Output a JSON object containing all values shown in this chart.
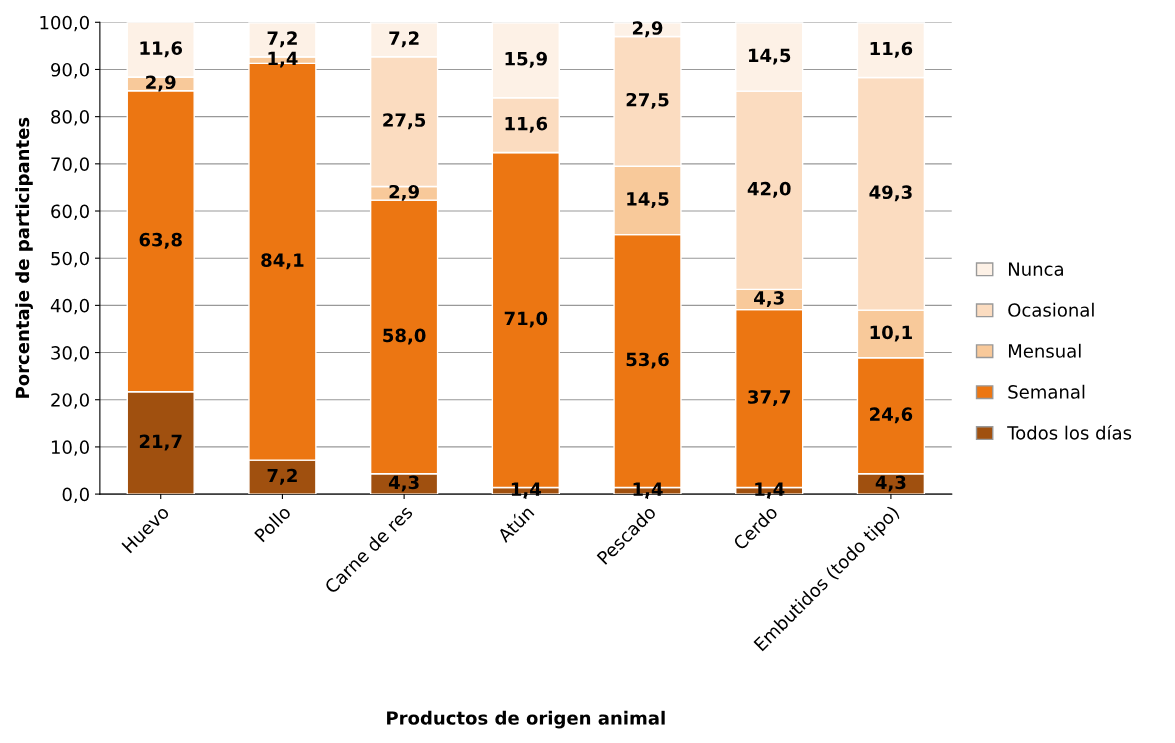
{
  "chart_data": {
    "type": "bar",
    "stacked": true,
    "xlabel": "Productos de origen animal",
    "ylabel": "Porcentaje de participantes",
    "categories": [
      "Huevo",
      "Pollo",
      "Carne de res",
      "Atún",
      "Pescado",
      "Cerdo",
      "Embutidos (todo tipo)"
    ],
    "series": [
      {
        "name": "Todos los días",
        "color": "#a0500f",
        "values": [
          21.7,
          7.2,
          4.3,
          1.4,
          1.4,
          1.4,
          4.3
        ],
        "value_labels": [
          "21,7",
          "7,2",
          "4,3",
          "1,4",
          "1,4",
          "1,4",
          "4,3"
        ]
      },
      {
        "name": "Semanal",
        "color": "#ec7612",
        "values": [
          63.8,
          84.1,
          58.0,
          71.0,
          53.6,
          37.7,
          24.6
        ],
        "value_labels": [
          "63,8",
          "84,1",
          "58,0",
          "71,0",
          "53,6",
          "37,7",
          "24,6"
        ]
      },
      {
        "name": "Mensual",
        "color": "#f8c99a",
        "values": [
          2.9,
          1.4,
          2.9,
          0,
          14.5,
          4.3,
          10.1
        ],
        "value_labels": [
          "2,9",
          "1,4",
          "2,9",
          null,
          "14,5",
          "4,3",
          "10,1"
        ]
      },
      {
        "name": "Ocasional",
        "color": "#fbdcc0",
        "values": [
          0,
          0,
          27.5,
          11.6,
          27.5,
          42.0,
          49.3
        ],
        "value_labels": [
          null,
          null,
          "27,5",
          "11,6",
          "27,5",
          "42,0",
          "49,3"
        ]
      },
      {
        "name": "Nunca",
        "color": "#fdf1e6",
        "values": [
          11.6,
          7.2,
          7.2,
          15.9,
          2.9,
          14.5,
          11.6
        ],
        "value_labels": [
          "11,6",
          "7,2",
          "7,2",
          "15,9",
          "2,9",
          "14,5",
          "11,6"
        ]
      }
    ],
    "ylim": [
      0,
      100
    ],
    "yticks": [
      {
        "value": 0,
        "label": "0,0"
      },
      {
        "value": 10,
        "label": "10,0"
      },
      {
        "value": 20,
        "label": "20,0"
      },
      {
        "value": 30,
        "label": "30,0"
      },
      {
        "value": 40,
        "label": "40,0"
      },
      {
        "value": 50,
        "label": "50,0"
      },
      {
        "value": 60,
        "label": "60,0"
      },
      {
        "value": 70,
        "label": "70,0"
      },
      {
        "value": 80,
        "label": "80,0"
      },
      {
        "value": 90,
        "label": "90,0"
      },
      {
        "value": 100,
        "label": "100,0"
      }
    ],
    "grid": "y",
    "legend": "right"
  }
}
